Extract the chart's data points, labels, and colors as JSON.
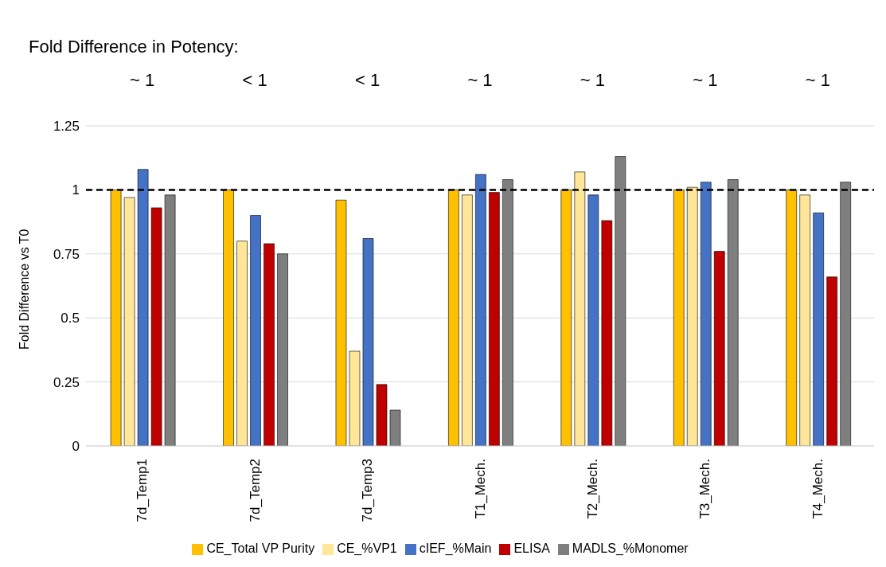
{
  "chart_data": {
    "type": "bar",
    "title": "Fold Difference in Potency:",
    "ylabel": "Fold Difference vs T0",
    "categories": [
      "7d_Temp1",
      "7d_Temp2",
      "7d_Temp3",
      "T1_Mech.",
      "T2_Mech.",
      "T3_Mech.",
      "T4_Mech."
    ],
    "series": [
      {
        "name": "CE_Total VP Purity",
        "color": "#ffc000",
        "values": [
          1.0,
          1.0,
          0.96,
          1.0,
          1.0,
          1.0,
          1.0
        ]
      },
      {
        "name": "CE_%VP1",
        "color": "#ffe699",
        "values": [
          0.97,
          0.8,
          0.37,
          0.98,
          1.07,
          1.01,
          0.98
        ]
      },
      {
        "name": "cIEF_%Main",
        "color": "#4472c4",
        "values": [
          1.08,
          0.9,
          0.81,
          1.06,
          0.98,
          1.03,
          0.91
        ]
      },
      {
        "name": "ELISA",
        "color": "#c00000",
        "values": [
          0.93,
          0.79,
          0.24,
          0.99,
          0.88,
          0.76,
          0.66
        ]
      },
      {
        "name": "MADLS_%Monomer",
        "color": "#7f7f7f",
        "values": [
          0.98,
          0.75,
          0.14,
          1.04,
          1.13,
          1.04,
          1.03
        ]
      }
    ],
    "ylim": [
      0,
      1.25
    ],
    "yticks": [
      0,
      0.25,
      0.5,
      0.75,
      1,
      1.25
    ],
    "grid": "y",
    "legend": "bottom",
    "ref_lines": [
      {
        "axis": "y",
        "value": 1,
        "color": "#000000",
        "line_style": "dashed"
      }
    ],
    "annotations": [
      "~ 1",
      "< 1",
      "< 1",
      "~ 1",
      "~ 1",
      "~ 1",
      "~ 1"
    ]
  }
}
